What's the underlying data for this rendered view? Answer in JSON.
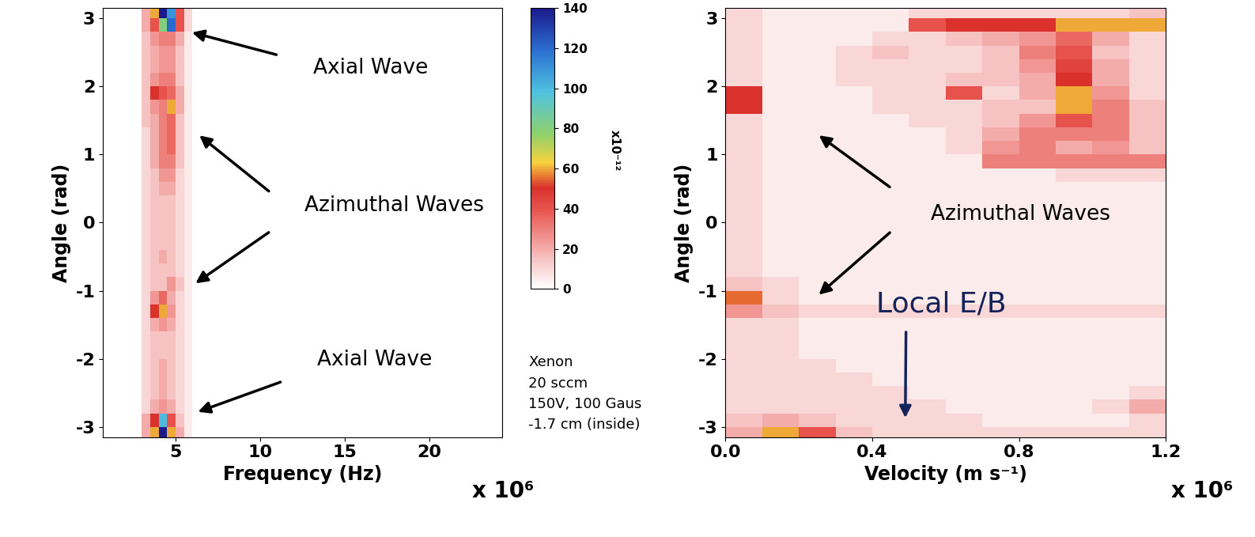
{
  "chart_data": [
    {
      "type": "heatmap",
      "x_label": "Frequency (Hz)",
      "y_label": "Angle (rad)",
      "x_multiplier": "x 10⁶",
      "xlim": [
        0.7,
        24.3
      ],
      "ylim": [
        -3.15,
        3.15
      ],
      "xticks": [
        5,
        10,
        15,
        20
      ],
      "yticks": [
        -3,
        -2,
        -1,
        0,
        1,
        2,
        3
      ],
      "x": [
        3.25,
        3.75,
        4.25,
        4.75,
        5.25,
        5.75
      ],
      "y": [
        -3.1,
        -2.9,
        -2.7,
        -2.5,
        -2.3,
        -2.1,
        -1.9,
        -1.7,
        -1.5,
        -1.3,
        -1.1,
        -0.9,
        -0.7,
        -0.5,
        -0.3,
        -0.1,
        0.1,
        0.3,
        0.5,
        0.7,
        0.9,
        1.1,
        1.3,
        1.5,
        1.7,
        1.9,
        2.1,
        2.3,
        2.5,
        2.7,
        2.9,
        3.1
      ],
      "values": [
        [
          20,
          60,
          140,
          60,
          20,
          5
        ],
        [
          20,
          50,
          100,
          40,
          15,
          5
        ],
        [
          10,
          20,
          25,
          20,
          10,
          5
        ],
        [
          10,
          15,
          20,
          15,
          10,
          5
        ],
        [
          10,
          15,
          20,
          15,
          10,
          5
        ],
        [
          10,
          15,
          20,
          15,
          10,
          5
        ],
        [
          10,
          15,
          15,
          15,
          10,
          5
        ],
        [
          10,
          15,
          15,
          15,
          10,
          5
        ],
        [
          10,
          20,
          25,
          20,
          10,
          5
        ],
        [
          10,
          50,
          60,
          25,
          10,
          5
        ],
        [
          10,
          25,
          35,
          20,
          10,
          5
        ],
        [
          10,
          15,
          15,
          25,
          15,
          5
        ],
        [
          10,
          15,
          15,
          15,
          10,
          5
        ],
        [
          10,
          15,
          20,
          15,
          10,
          5
        ],
        [
          10,
          15,
          15,
          15,
          10,
          5
        ],
        [
          10,
          15,
          15,
          15,
          10,
          5
        ],
        [
          10,
          15,
          15,
          15,
          10,
          5
        ],
        [
          10,
          15,
          15,
          15,
          10,
          5
        ],
        [
          10,
          15,
          20,
          20,
          10,
          5
        ],
        [
          10,
          15,
          25,
          25,
          10,
          5
        ],
        [
          10,
          20,
          30,
          30,
          15,
          5
        ],
        [
          10,
          20,
          30,
          35,
          15,
          5
        ],
        [
          10,
          20,
          30,
          35,
          15,
          5
        ],
        [
          15,
          20,
          30,
          35,
          15,
          5
        ],
        [
          15,
          25,
          30,
          60,
          20,
          5
        ],
        [
          15,
          50,
          40,
          35,
          20,
          5
        ],
        [
          15,
          25,
          30,
          30,
          15,
          5
        ],
        [
          15,
          20,
          25,
          25,
          15,
          5
        ],
        [
          15,
          20,
          25,
          25,
          15,
          5
        ],
        [
          15,
          25,
          30,
          30,
          20,
          5
        ],
        [
          20,
          40,
          80,
          120,
          40,
          10
        ],
        [
          20,
          60,
          140,
          110,
          40,
          10
        ]
      ],
      "annotations": [
        {
          "text": "Axial Wave",
          "points": [
            [
              5.84,
              2.8
            ]
          ]
        },
        {
          "text": "Azimuthal Waves",
          "points": [
            [
              6.3,
              1.3
            ],
            [
              6.07,
              -0.91
            ]
          ]
        },
        {
          "text": "Axial Wave",
          "points": [
            [
              6.2,
              -2.79
            ]
          ]
        }
      ],
      "colorbar": {
        "label": "x10⁻¹²",
        "range": [
          0,
          140
        ],
        "ticks": [
          0,
          20,
          40,
          60,
          80,
          100,
          120,
          140
        ]
      },
      "notes": [
        "Xenon",
        "20 sccm",
        "150V, 100 Gaus",
        "-1.7 cm (inside)"
      ]
    },
    {
      "type": "heatmap",
      "x_label": "Velocity (m s⁻¹)",
      "y_label": "Angle (rad)",
      "x_multiplier": "x 10⁶",
      "xlim": [
        0,
        1.2
      ],
      "ylim": [
        -3.15,
        3.15
      ],
      "xticks": [
        {
          "value": 0,
          "label": "0.0"
        },
        {
          "value": 0.4,
          "label": "0.4"
        },
        {
          "value": 0.8,
          "label": "0.8"
        },
        {
          "value": 1.2,
          "label": "1.2"
        }
      ],
      "yticks": [
        -3,
        -2,
        -1,
        0,
        1,
        2,
        3
      ],
      "x": [
        0.05,
        0.15,
        0.25,
        0.35,
        0.45,
        0.55,
        0.65,
        0.75,
        0.85,
        0.95,
        1.05,
        1.15
      ],
      "y": [
        -3.1,
        -2.9,
        -2.7,
        -2.5,
        -2.3,
        -2.1,
        -1.9,
        -1.7,
        -1.5,
        -1.3,
        -1.1,
        -0.9,
        -0.7,
        -0.5,
        -0.3,
        -0.1,
        0.1,
        0.3,
        0.5,
        0.7,
        0.9,
        1.1,
        1.3,
        1.5,
        1.7,
        1.9,
        2.1,
        2.3,
        2.5,
        2.7,
        2.9,
        3.1
      ],
      "values": [
        [
          20,
          60,
          40,
          15,
          10,
          10,
          10,
          10,
          10,
          10,
          10,
          10
        ],
        [
          15,
          20,
          15,
          10,
          10,
          10,
          10,
          5,
          5,
          5,
          5,
          10
        ],
        [
          10,
          10,
          10,
          10,
          10,
          10,
          5,
          5,
          5,
          5,
          10,
          20
        ],
        [
          10,
          10,
          10,
          10,
          10,
          5,
          5,
          5,
          5,
          5,
          5,
          10
        ],
        [
          10,
          10,
          10,
          10,
          5,
          5,
          5,
          5,
          5,
          5,
          5,
          5
        ],
        [
          10,
          10,
          10,
          5,
          5,
          5,
          5,
          5,
          5,
          5,
          5,
          5
        ],
        [
          10,
          10,
          5,
          5,
          5,
          5,
          5,
          5,
          5,
          5,
          5,
          5
        ],
        [
          10,
          10,
          5,
          5,
          5,
          5,
          5,
          5,
          5,
          5,
          5,
          5
        ],
        [
          10,
          10,
          5,
          5,
          5,
          5,
          5,
          5,
          5,
          5,
          5,
          5
        ],
        [
          25,
          15,
          10,
          10,
          10,
          10,
          10,
          10,
          10,
          10,
          10,
          10
        ],
        [
          55,
          10,
          5,
          5,
          5,
          5,
          5,
          5,
          5,
          5,
          5,
          5
        ],
        [
          15,
          10,
          5,
          5,
          5,
          5,
          5,
          5,
          5,
          5,
          5,
          5
        ],
        [
          10,
          5,
          5,
          5,
          5,
          5,
          5,
          5,
          5,
          5,
          5,
          5
        ],
        [
          10,
          5,
          5,
          5,
          5,
          5,
          5,
          5,
          5,
          5,
          5,
          5
        ],
        [
          10,
          5,
          5,
          5,
          5,
          5,
          5,
          5,
          5,
          5,
          5,
          5
        ],
        [
          10,
          5,
          5,
          5,
          5,
          5,
          5,
          5,
          5,
          5,
          5,
          5
        ],
        [
          10,
          5,
          5,
          5,
          5,
          5,
          5,
          5,
          5,
          5,
          5,
          5
        ],
        [
          10,
          5,
          5,
          5,
          5,
          5,
          5,
          5,
          5,
          5,
          5,
          5
        ],
        [
          10,
          5,
          5,
          5,
          5,
          5,
          5,
          5,
          5,
          5,
          5,
          5
        ],
        [
          10,
          5,
          5,
          5,
          5,
          5,
          5,
          5,
          5,
          10,
          10,
          10
        ],
        [
          10,
          5,
          5,
          5,
          5,
          5,
          5,
          30,
          30,
          30,
          30,
          30
        ],
        [
          10,
          5,
          5,
          5,
          5,
          5,
          10,
          25,
          30,
          20,
          25,
          15
        ],
        [
          10,
          5,
          5,
          5,
          5,
          5,
          10,
          20,
          30,
          30,
          30,
          15
        ],
        [
          10,
          5,
          5,
          5,
          5,
          10,
          10,
          15,
          25,
          40,
          30,
          15
        ],
        [
          50,
          5,
          5,
          5,
          10,
          10,
          10,
          15,
          15,
          60,
          30,
          15
        ],
        [
          50,
          5,
          5,
          5,
          10,
          10,
          40,
          10,
          20,
          60,
          25,
          10
        ],
        [
          10,
          5,
          5,
          10,
          10,
          10,
          15,
          15,
          20,
          50,
          20,
          10
        ],
        [
          10,
          5,
          5,
          10,
          10,
          10,
          10,
          15,
          25,
          45,
          20,
          10
        ],
        [
          10,
          5,
          5,
          10,
          15,
          10,
          10,
          15,
          30,
          40,
          15,
          10
        ],
        [
          10,
          5,
          5,
          5,
          10,
          10,
          15,
          20,
          25,
          35,
          20,
          10
        ],
        [
          10,
          5,
          5,
          5,
          5,
          40,
          50,
          50,
          50,
          60,
          60,
          60
        ],
        [
          10,
          5,
          5,
          5,
          5,
          10,
          10,
          10,
          10,
          10,
          10,
          15
        ]
      ],
      "annotations": [
        {
          "text": "Azimuthal Waves",
          "points": [
            [
              0.25,
              1.3
            ],
            [
              0.25,
              -1.08
            ]
          ]
        },
        {
          "text": "Local E/B",
          "points": [
            [
              0.49,
              -2.9
            ]
          ]
        }
      ],
      "colorbar": {
        "range": [
          0,
          140
        ]
      }
    }
  ]
}
